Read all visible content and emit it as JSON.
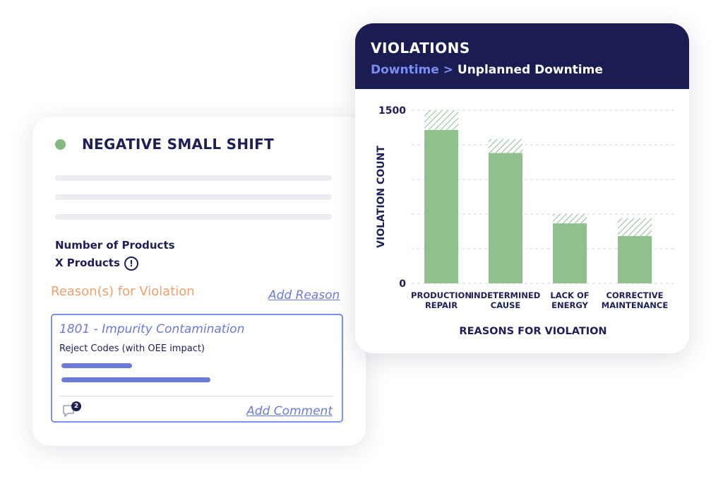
{
  "shift_card": {
    "title": "NEGATIVE SMALL SHIFT",
    "status_color": "#86b884",
    "products_label": "Number of Products",
    "products_value": "X Products",
    "info_icon": "!",
    "reasons_label": "Reason(s) for Violation",
    "add_reason": "Add Reason",
    "reason": {
      "code": "1801 - Impurity Contamination",
      "reject_label": "Reject Codes (with OEE impact)",
      "comment_count": "2",
      "add_comment": "Add Comment"
    }
  },
  "violations_card": {
    "title": "VIOLATIONS",
    "breadcrumb": {
      "parent": "Downtime",
      "separator": ">",
      "current": "Unplanned Downtime"
    }
  },
  "chart_data": {
    "type": "bar",
    "stacked": true,
    "categories": [
      [
        "PRODUCTION",
        "REPAIR"
      ],
      [
        "INDETERMINED",
        "CAUSE"
      ],
      [
        "LACK OF",
        "ENERGY"
      ],
      [
        "CORRECTIVE",
        "MAINTENANCE"
      ]
    ],
    "series": [
      {
        "color": "#8fc08e",
        "pattern": "solid",
        "values": [
          1330,
          1130,
          520,
          410
        ]
      },
      {
        "color": "#8fc08e",
        "pattern": "hatched",
        "values": [
          170,
          120,
          85,
          155
        ]
      }
    ],
    "ylim": [
      0,
      1500
    ],
    "yticks": [
      0,
      1500
    ],
    "ylabel": "VIOLATION COUNT",
    "xlabel": "REASONS FOR VIOLATION",
    "grid": true
  }
}
